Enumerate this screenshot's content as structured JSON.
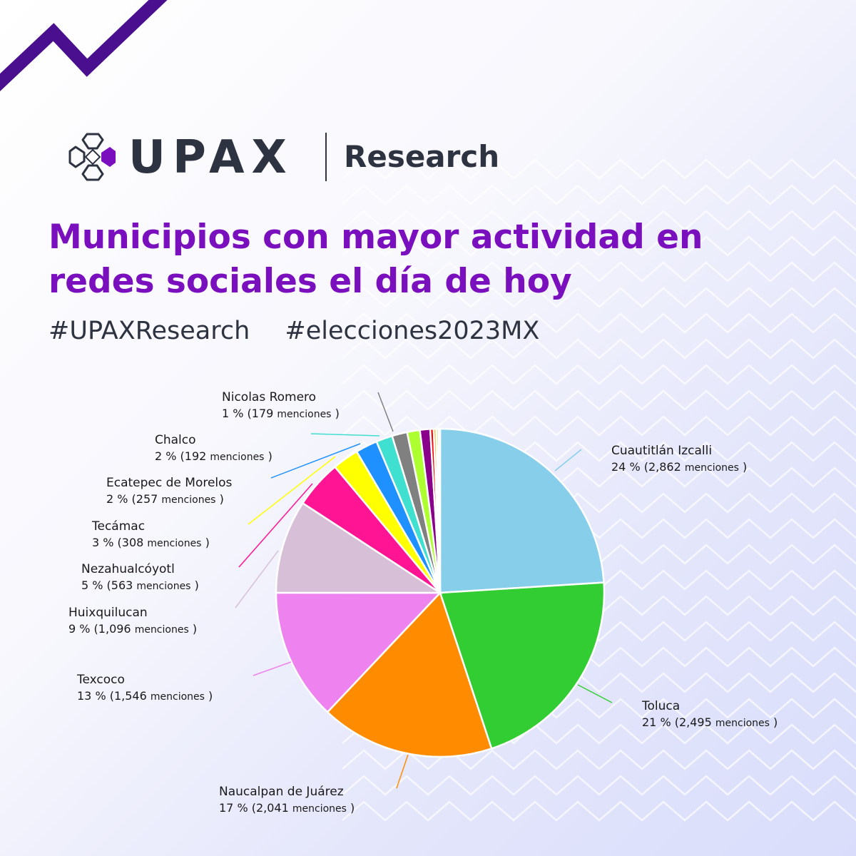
{
  "brand": {
    "name": "UPAX",
    "sub": "Research",
    "accent": "#7a0fbd",
    "dark": "#2d3340"
  },
  "title": "Municipios con mayor actividad en redes sociales el día de hoy",
  "hashtags": [
    "#UPAXResearch",
    "#elecciones2023MX"
  ],
  "chart_data": {
    "type": "pie",
    "unit_label": "menciones",
    "slices": [
      {
        "name": "Cuautitlán Izcalli",
        "percent": 24,
        "mentions": 2862,
        "mentions_label": "2,862",
        "color": "#87ceeb",
        "labeled": true
      },
      {
        "name": "Toluca",
        "percent": 21,
        "mentions": 2495,
        "mentions_label": "2,495",
        "color": "#32cd32",
        "labeled": true
      },
      {
        "name": "Naucalpan de Juárez",
        "percent": 17,
        "mentions": 2041,
        "mentions_label": "2,041",
        "color": "#ff8c00",
        "labeled": true
      },
      {
        "name": "Texcoco",
        "percent": 13,
        "mentions": 1546,
        "mentions_label": "1,546",
        "color": "#ee82ee",
        "labeled": true
      },
      {
        "name": "Huixquilucan",
        "percent": 9,
        "mentions": 1096,
        "mentions_label": "1,096",
        "color": "#d8bfd8",
        "labeled": true
      },
      {
        "name": "Nezahualcóyotl",
        "percent": 5,
        "mentions": 563,
        "mentions_label": "563",
        "color": "#ff1493",
        "labeled": true
      },
      {
        "name": "Tecámac",
        "percent": 3,
        "mentions": 308,
        "mentions_label": "308",
        "color": "#ffff00",
        "labeled": true
      },
      {
        "name": "Ecatepec de Morelos",
        "percent": 2,
        "mentions": 257,
        "mentions_label": "257",
        "color": "#1e90ff",
        "labeled": true
      },
      {
        "name": "Chalco",
        "percent": 2,
        "mentions": 192,
        "mentions_label": "192",
        "color": "#40e0d0",
        "labeled": true
      },
      {
        "name": "Nicolas Romero",
        "percent": 1,
        "mentions": 179,
        "mentions_label": "179",
        "color": "#808080",
        "labeled": true
      },
      {
        "name": "",
        "mentions": 150,
        "color": "#adff2f",
        "labeled": false
      },
      {
        "name": "",
        "mentions": 120,
        "color": "#8b008b",
        "labeled": false
      },
      {
        "name": "",
        "mentions": 40,
        "color": "#ff0000",
        "labeled": false
      },
      {
        "name": "",
        "mentions": 30,
        "color": "#ffa500",
        "labeled": false
      },
      {
        "name": "",
        "mentions": 25,
        "color": "#9acd32",
        "labeled": false
      },
      {
        "name": "",
        "mentions": 20,
        "color": "#daa520",
        "labeled": false
      }
    ]
  }
}
